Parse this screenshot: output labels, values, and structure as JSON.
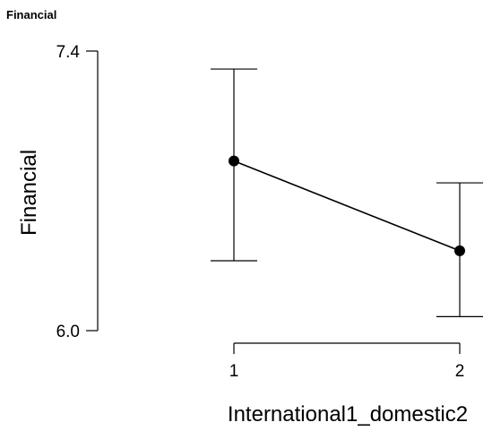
{
  "panel_title": "Financial",
  "chart_data": {
    "type": "line",
    "title": "",
    "xlabel": "International1_domestic2",
    "ylabel": "Financial",
    "categories": [
      "1",
      "2"
    ],
    "series": [
      {
        "values": [
          6.85,
          6.4
        ],
        "ci_upper": [
          7.31,
          6.74
        ],
        "ci_lower": [
          6.35,
          6.07
        ]
      }
    ],
    "yticks": [
      "6.0",
      "7.4"
    ],
    "ylim": [
      6.0,
      7.4
    ],
    "grid": false,
    "legend": "none"
  }
}
